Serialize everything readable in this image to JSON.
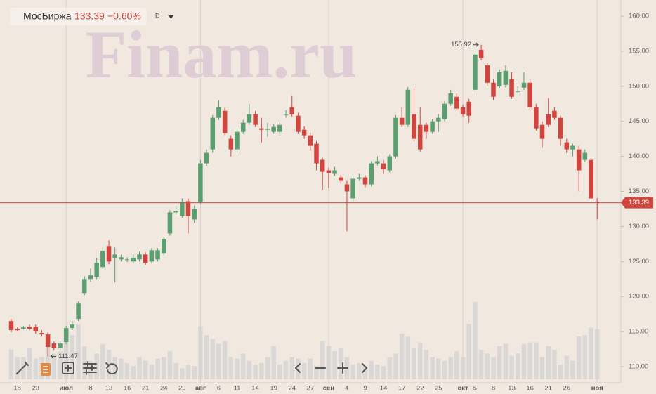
{
  "header": {
    "instrument": "МосБиржа",
    "change": "−0.60%",
    "interval": "D"
  },
  "watermark": "Finam.ru",
  "chart_data": {
    "type": "candlestick",
    "up_color": "#5b9e70",
    "down_color": "#d2453f",
    "volume_color": "#d3d3d3",
    "categories": [
      null,
      "18",
      null,
      null,
      "23",
      null,
      null,
      null,
      null,
      "июл",
      null,
      null,
      null,
      "8",
      null,
      null,
      "13",
      null,
      null,
      "16",
      null,
      null,
      "21",
      null,
      null,
      "24",
      null,
      null,
      "29",
      null,
      null,
      "авг",
      null,
      null,
      "6",
      null,
      null,
      "11",
      null,
      null,
      "14",
      null,
      null,
      "19",
      null,
      null,
      "24",
      null,
      null,
      "27",
      null,
      null,
      "сен",
      null,
      null,
      "4",
      null,
      null,
      "9",
      null,
      null,
      "14",
      null,
      null,
      "17",
      null,
      null,
      "22",
      null,
      null,
      "25",
      null,
      null,
      null,
      "окт",
      null,
      "5",
      null,
      null,
      "8",
      null,
      null,
      "13",
      null,
      null,
      "16",
      null,
      null,
      "21",
      null,
      null,
      "26",
      null,
      null,
      null,
      null,
      "ноя"
    ],
    "open": [
      116.5,
      115.4,
      115.4,
      115.7,
      115.7,
      114.8,
      114.6,
      113.3,
      112.6,
      113.5,
      115.5,
      116.8,
      120.5,
      122.5,
      122.8,
      124.2,
      127.2,
      125.5,
      125.3,
      125.2,
      125.0,
      125.3,
      126.0,
      125.0,
      125.3,
      126.2,
      129.0,
      132.0,
      131.5,
      133.6,
      131.0,
      133.5,
      139.0,
      141.0,
      145.5,
      146.5,
      142.5,
      141.0,
      143.5,
      144.8,
      146.0,
      144.0,
      143.8,
      143.5,
      143.5,
      145.9,
      147.0,
      145.8,
      143.8,
      143.0,
      141.8,
      139.5,
      138.0,
      137.5,
      137.0,
      136.0,
      134.0,
      136.8,
      137.0,
      136.0,
      139.0,
      139.0,
      138.0,
      140.0,
      145.5,
      144.5,
      146.0,
      144.5,
      144.5,
      143.5,
      145.0,
      145.3,
      147.5,
      148.5,
      147.0,
      147.8,
      149.5,
      155.2,
      153.0,
      150.5,
      150.0,
      150.2,
      151.0,
      149.3,
      149.8,
      150.5,
      147.0,
      144.5,
      146.0,
      146.5,
      145.5,
      142.0,
      141.0,
      141.0,
      139.5,
      139.5,
      133.5
    ],
    "high": [
      116.8,
      115.6,
      115.8,
      116.0,
      116.0,
      115.2,
      114.9,
      113.6,
      113.7,
      115.8,
      116.5,
      119.3,
      122.9,
      124.0,
      125.5,
      127.0,
      128.0,
      127.0,
      126.0,
      125.6,
      126.0,
      126.4,
      126.3,
      126.9,
      126.9,
      128.5,
      132.3,
      133.0,
      134.0,
      134.0,
      133.0,
      139.5,
      141.0,
      145.9,
      148.0,
      147.0,
      143.0,
      144.0,
      145.2,
      147.5,
      146.5,
      145.5,
      144.8,
      144.6,
      144.8,
      146.6,
      148.7,
      146.2,
      144.3,
      143.4,
      142.2,
      139.8,
      138.4,
      138.5,
      137.4,
      136.5,
      137.2,
      137.5,
      137.3,
      139.3,
      140.0,
      139.5,
      140.3,
      145.9,
      147.0,
      149.9,
      150.0,
      147.0,
      144.8,
      145.3,
      146.0,
      147.9,
      149.5,
      149.0,
      147.4,
      148.2,
      155.3,
      155.92,
      153.3,
      151.0,
      152.4,
      153.0,
      152.0,
      150.0,
      152.0,
      151.0,
      147.5,
      145.0,
      148.3,
      147.0,
      145.8,
      142.5,
      141.8,
      141.5,
      141.0,
      139.8,
      134.0
    ],
    "low": [
      114.9,
      115.0,
      115.3,
      115.2,
      114.7,
      114.3,
      111.47,
      112.3,
      112.3,
      113.2,
      115.2,
      116.5,
      120.2,
      122.1,
      122.5,
      123.9,
      124.6,
      122.0,
      125.0,
      124.9,
      124.7,
      125.0,
      124.5,
      124.7,
      125.0,
      125.9,
      128.7,
      131.7,
      131.2,
      129.0,
      130.5,
      133.2,
      138.6,
      140.5,
      145.2,
      143.0,
      140.0,
      140.5,
      143.2,
      144.5,
      144.2,
      142.0,
      142.8,
      143.2,
      143.0,
      145.5,
      145.7,
      143.2,
      142.5,
      140.8,
      138.0,
      135.2,
      135.5,
      137.2,
      136.2,
      129.3,
      133.5,
      136.5,
      135.6,
      135.7,
      138.7,
      137.5,
      137.7,
      139.7,
      144.2,
      144.2,
      142.2,
      140.7,
      142.5,
      143.2,
      143.5,
      145.0,
      147.2,
      146.5,
      145.7,
      144.8,
      149.2,
      153.7,
      150.0,
      148.0,
      149.7,
      149.8,
      148.2,
      149.0,
      149.5,
      146.7,
      143.7,
      141.2,
      144.2,
      145.2,
      141.5,
      140.5,
      140.0,
      135.0,
      139.2,
      133.8,
      131.0
    ],
    "close": [
      115.2,
      115.2,
      115.6,
      115.4,
      115.0,
      114.6,
      112.8,
      112.6,
      113.3,
      115.5,
      116.0,
      119.0,
      122.5,
      123.0,
      124.8,
      126.5,
      125.0,
      126.0,
      125.6,
      125.3,
      125.5,
      126.0,
      124.8,
      126.6,
      126.6,
      128.2,
      132.0,
      132.2,
      133.5,
      131.5,
      132.5,
      139.0,
      140.5,
      145.5,
      147.0,
      143.3,
      141.0,
      143.5,
      144.8,
      146.0,
      144.5,
      143.8,
      143.9,
      144.2,
      144.5,
      146.0,
      146.0,
      143.5,
      143.0,
      141.5,
      139.0,
      137.8,
      137.6,
      138.0,
      136.5,
      135.0,
      136.8,
      137.0,
      136.0,
      139.0,
      139.3,
      138.2,
      140.0,
      145.5,
      144.5,
      149.5,
      142.5,
      141.0,
      143.5,
      145.0,
      145.5,
      147.5,
      149.0,
      146.8,
      146.0,
      145.8,
      154.5,
      154.0,
      150.5,
      148.5,
      152.0,
      152.2,
      148.5,
      149.3,
      150.5,
      147.0,
      144.0,
      142.5,
      144.5,
      145.5,
      142.5,
      141.0,
      141.5,
      138.0,
      140.5,
      134.0,
      133.39
    ],
    "volume": [
      40,
      30,
      30,
      42,
      28,
      30,
      55,
      35,
      38,
      50,
      60,
      75,
      45,
      25,
      35,
      48,
      40,
      30,
      28,
      22,
      18,
      30,
      25,
      20,
      28,
      30,
      38,
      22,
      15,
      20,
      18,
      72,
      60,
      55,
      48,
      52,
      30,
      28,
      35,
      25,
      20,
      22,
      30,
      45,
      20,
      25,
      30,
      28,
      22,
      28,
      18,
      52,
      45,
      38,
      42,
      30,
      20,
      22,
      18,
      25,
      20,
      18,
      30,
      35,
      62,
      58,
      42,
      50,
      40,
      30,
      28,
      25,
      30,
      38,
      30,
      75,
      105,
      40,
      35,
      30,
      45,
      48,
      32,
      35,
      48,
      50,
      50,
      30,
      45,
      40,
      20,
      32,
      25,
      58,
      60,
      70,
      68
    ],
    "ylim": [
      108.2,
      161.5
    ],
    "yticks": [
      {
        "value": 110,
        "label": "110.00"
      },
      {
        "value": 115,
        "label": "115.00"
      },
      {
        "value": 120,
        "label": "120.00"
      },
      {
        "value": 125,
        "label": "125.00"
      },
      {
        "value": 130,
        "label": "130.00"
      },
      {
        "value": 135,
        "label": "135.00"
      },
      {
        "value": 140,
        "label": "140.00"
      },
      {
        "value": 145,
        "label": "145.00"
      },
      {
        "value": 150,
        "label": "150.00"
      },
      {
        "value": 155,
        "label": "155.00"
      },
      {
        "value": 160,
        "label": "160.00"
      }
    ]
  }
}
